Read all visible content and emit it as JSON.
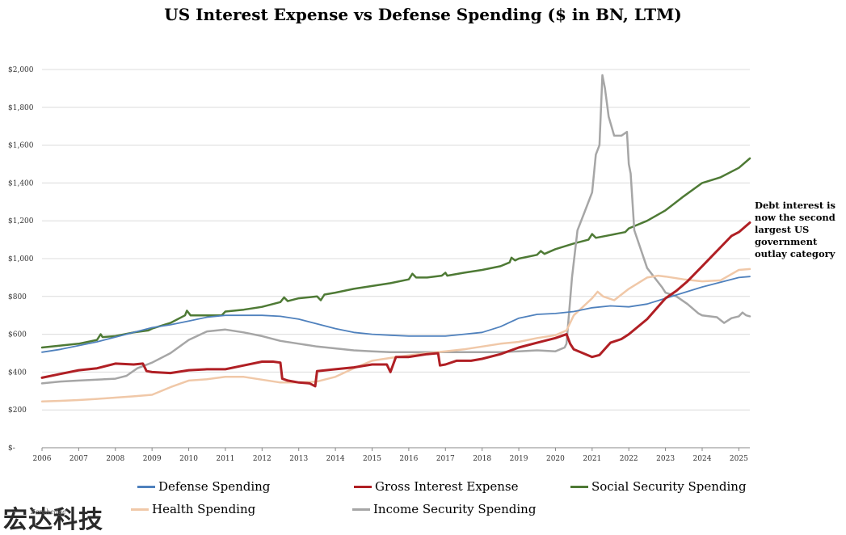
{
  "chart_data": {
    "type": "line",
    "title": "US Interest Expense vs Defense Spending ($ in BN, LTM)",
    "xlabel": "",
    "ylabel": "",
    "xlim": [
      2006,
      2025.3
    ],
    "ylim": [
      0,
      2000
    ],
    "y_ticks": [
      {
        "value": 0,
        "label": "$-"
      },
      {
        "value": 200,
        "label": "$200"
      },
      {
        "value": 400,
        "label": "$400"
      },
      {
        "value": 600,
        "label": "$600"
      },
      {
        "value": 800,
        "label": "$800"
      },
      {
        "value": 1000,
        "label": "$1,000"
      },
      {
        "value": 1200,
        "label": "$1,200"
      },
      {
        "value": 1400,
        "label": "$1,400"
      },
      {
        "value": 1600,
        "label": "$1,600"
      },
      {
        "value": 1800,
        "label": "$1,800"
      },
      {
        "value": 2000,
        "label": "$2,000"
      }
    ],
    "x_ticks": [
      {
        "value": 2006,
        "label": "2006"
      },
      {
        "value": 2007,
        "label": "2007"
      },
      {
        "value": 2008,
        "label": "2008"
      },
      {
        "value": 2009,
        "label": "2009"
      },
      {
        "value": 2010,
        "label": "2010"
      },
      {
        "value": 2011,
        "label": "2011"
      },
      {
        "value": 2012,
        "label": "2012"
      },
      {
        "value": 2013,
        "label": "2013"
      },
      {
        "value": 2014,
        "label": "2014"
      },
      {
        "value": 2015,
        "label": "2015"
      },
      {
        "value": 2016,
        "label": "2016"
      },
      {
        "value": 2017,
        "label": "2017"
      },
      {
        "value": 2018,
        "label": "2018"
      },
      {
        "value": 2019,
        "label": "2019"
      },
      {
        "value": 2020,
        "label": "2020"
      },
      {
        "value": 2021,
        "label": "2021"
      },
      {
        "value": 2022,
        "label": "2022"
      },
      {
        "value": 2023,
        "label": "2023"
      },
      {
        "value": 2024,
        "label": "2024"
      },
      {
        "value": 2025,
        "label": "2025"
      }
    ],
    "grid": "horizontal",
    "legend_position": "bottom",
    "series": [
      {
        "name": "Social Security Spending",
        "color": "#4e7a35",
        "stroke_width": 2.5,
        "points": [
          [
            2006,
            530
          ],
          [
            2006.5,
            540
          ],
          [
            2007,
            550
          ],
          [
            2007.5,
            570
          ],
          [
            2007.6,
            600
          ],
          [
            2007.65,
            585
          ],
          [
            2008,
            590
          ],
          [
            2008.5,
            610
          ],
          [
            2008.9,
            620
          ],
          [
            2009,
            630
          ],
          [
            2009.5,
            660
          ],
          [
            2009.9,
            700
          ],
          [
            2009.95,
            725
          ],
          [
            2010.05,
            700
          ],
          [
            2010.5,
            700
          ],
          [
            2010.9,
            700
          ],
          [
            2011,
            720
          ],
          [
            2011.5,
            730
          ],
          [
            2012,
            745
          ],
          [
            2012.5,
            770
          ],
          [
            2012.6,
            795
          ],
          [
            2012.7,
            775
          ],
          [
            2013,
            790
          ],
          [
            2013.5,
            800
          ],
          [
            2013.6,
            780
          ],
          [
            2013.7,
            810
          ],
          [
            2014,
            820
          ],
          [
            2014.5,
            840
          ],
          [
            2015,
            855
          ],
          [
            2015.5,
            870
          ],
          [
            2016,
            890
          ],
          [
            2016.1,
            920
          ],
          [
            2016.2,
            900
          ],
          [
            2016.5,
            900
          ],
          [
            2016.9,
            910
          ],
          [
            2017,
            925
          ],
          [
            2017.05,
            910
          ],
          [
            2017.5,
            925
          ],
          [
            2018,
            940
          ],
          [
            2018.5,
            960
          ],
          [
            2018.75,
            980
          ],
          [
            2018.8,
            1005
          ],
          [
            2018.9,
            990
          ],
          [
            2019,
            1000
          ],
          [
            2019.5,
            1020
          ],
          [
            2019.6,
            1040
          ],
          [
            2019.7,
            1025
          ],
          [
            2020,
            1050
          ],
          [
            2020.5,
            1080
          ],
          [
            2020.9,
            1100
          ],
          [
            2021,
            1130
          ],
          [
            2021.1,
            1110
          ],
          [
            2021.5,
            1125
          ],
          [
            2021.9,
            1140
          ],
          [
            2022,
            1160
          ],
          [
            2022.5,
            1200
          ],
          [
            2023,
            1255
          ],
          [
            2023.5,
            1330
          ],
          [
            2024,
            1400
          ],
          [
            2024.5,
            1430
          ],
          [
            2025,
            1480
          ],
          [
            2025.3,
            1530
          ]
        ]
      },
      {
        "name": "Income Security Spending",
        "color": "#a6a6a6",
        "stroke_width": 2.5,
        "points": [
          [
            2006,
            340
          ],
          [
            2006.5,
            350
          ],
          [
            2007,
            355
          ],
          [
            2007.5,
            360
          ],
          [
            2008,
            365
          ],
          [
            2008.3,
            380
          ],
          [
            2008.6,
            420
          ],
          [
            2009,
            450
          ],
          [
            2009.5,
            500
          ],
          [
            2010,
            570
          ],
          [
            2010.5,
            615
          ],
          [
            2011,
            625
          ],
          [
            2011.5,
            610
          ],
          [
            2012,
            590
          ],
          [
            2012.5,
            565
          ],
          [
            2013,
            550
          ],
          [
            2013.5,
            535
          ],
          [
            2014,
            525
          ],
          [
            2014.5,
            515
          ],
          [
            2015,
            510
          ],
          [
            2015.5,
            505
          ],
          [
            2016,
            505
          ],
          [
            2016.5,
            505
          ],
          [
            2017,
            505
          ],
          [
            2017.5,
            505
          ],
          [
            2018,
            505
          ],
          [
            2018.5,
            505
          ],
          [
            2019,
            510
          ],
          [
            2019.5,
            515
          ],
          [
            2020,
            510
          ],
          [
            2020.25,
            530
          ],
          [
            2020.3,
            550
          ],
          [
            2020.45,
            900
          ],
          [
            2020.6,
            1150
          ],
          [
            2020.8,
            1250
          ],
          [
            2021,
            1350
          ],
          [
            2021.05,
            1450
          ],
          [
            2021.1,
            1550
          ],
          [
            2021.2,
            1600
          ],
          [
            2021.28,
            1970
          ],
          [
            2021.35,
            1900
          ],
          [
            2021.45,
            1750
          ],
          [
            2021.6,
            1650
          ],
          [
            2021.8,
            1650
          ],
          [
            2021.95,
            1670
          ],
          [
            2022,
            1500
          ],
          [
            2022.05,
            1450
          ],
          [
            2022.15,
            1150
          ],
          [
            2022.5,
            950
          ],
          [
            2022.9,
            850
          ],
          [
            2023,
            820
          ],
          [
            2023.3,
            800
          ],
          [
            2023.6,
            760
          ],
          [
            2023.9,
            710
          ],
          [
            2024,
            700
          ],
          [
            2024.4,
            690
          ],
          [
            2024.6,
            660
          ],
          [
            2024.8,
            685
          ],
          [
            2025,
            695
          ],
          [
            2025.1,
            715
          ],
          [
            2025.2,
            700
          ],
          [
            2025.3,
            695
          ]
        ]
      },
      {
        "name": "Health Spending",
        "color": "#f0c8a8",
        "stroke_width": 2.5,
        "points": [
          [
            2006,
            245
          ],
          [
            2006.5,
            248
          ],
          [
            2007,
            252
          ],
          [
            2007.5,
            258
          ],
          [
            2008,
            265
          ],
          [
            2008.5,
            272
          ],
          [
            2009,
            280
          ],
          [
            2009.5,
            320
          ],
          [
            2010,
            355
          ],
          [
            2010.5,
            362
          ],
          [
            2011,
            375
          ],
          [
            2011.5,
            375
          ],
          [
            2012,
            360
          ],
          [
            2012.5,
            345
          ],
          [
            2013,
            345
          ],
          [
            2013.5,
            350
          ],
          [
            2014,
            375
          ],
          [
            2014.5,
            420
          ],
          [
            2015,
            460
          ],
          [
            2015.5,
            475
          ],
          [
            2016,
            488
          ],
          [
            2016.5,
            500
          ],
          [
            2017,
            510
          ],
          [
            2017.5,
            520
          ],
          [
            2018,
            535
          ],
          [
            2018.5,
            550
          ],
          [
            2019,
            560
          ],
          [
            2019.5,
            580
          ],
          [
            2020,
            595
          ],
          [
            2020.3,
            620
          ],
          [
            2020.5,
            700
          ],
          [
            2021,
            790
          ],
          [
            2021.15,
            825
          ],
          [
            2021.3,
            800
          ],
          [
            2021.6,
            780
          ],
          [
            2022,
            840
          ],
          [
            2022.5,
            900
          ],
          [
            2022.8,
            910
          ],
          [
            2023,
            905
          ],
          [
            2023.5,
            890
          ],
          [
            2024,
            880
          ],
          [
            2024.5,
            885
          ],
          [
            2025,
            940
          ],
          [
            2025.3,
            945
          ]
        ]
      },
      {
        "name": "Defense Spending",
        "color": "#4f81bd",
        "stroke_width": 1.8,
        "points": [
          [
            2006,
            505
          ],
          [
            2006.5,
            520
          ],
          [
            2007,
            540
          ],
          [
            2007.5,
            560
          ],
          [
            2008,
            585
          ],
          [
            2008.5,
            610
          ],
          [
            2009,
            635
          ],
          [
            2009.5,
            650
          ],
          [
            2010,
            670
          ],
          [
            2010.5,
            690
          ],
          [
            2011,
            700
          ],
          [
            2011.5,
            700
          ],
          [
            2012,
            700
          ],
          [
            2012.5,
            695
          ],
          [
            2013,
            680
          ],
          [
            2013.5,
            655
          ],
          [
            2014,
            630
          ],
          [
            2014.5,
            610
          ],
          [
            2015,
            600
          ],
          [
            2015.5,
            595
          ],
          [
            2016,
            590
          ],
          [
            2016.5,
            590
          ],
          [
            2017,
            590
          ],
          [
            2017.5,
            600
          ],
          [
            2018,
            610
          ],
          [
            2018.5,
            640
          ],
          [
            2019,
            685
          ],
          [
            2019.5,
            705
          ],
          [
            2020,
            710
          ],
          [
            2020.5,
            720
          ],
          [
            2021,
            740
          ],
          [
            2021.5,
            750
          ],
          [
            2022,
            745
          ],
          [
            2022.5,
            760
          ],
          [
            2023,
            790
          ],
          [
            2023.5,
            820
          ],
          [
            2024,
            850
          ],
          [
            2024.5,
            875
          ],
          [
            2025,
            900
          ],
          [
            2025.3,
            905
          ]
        ]
      },
      {
        "name": "Gross Interest Expense",
        "color": "#b01f24",
        "stroke_width": 3,
        "points": [
          [
            2006,
            370
          ],
          [
            2006.5,
            390
          ],
          [
            2007,
            410
          ],
          [
            2007.5,
            420
          ],
          [
            2008,
            445
          ],
          [
            2008.5,
            440
          ],
          [
            2008.75,
            445
          ],
          [
            2008.85,
            405
          ],
          [
            2009,
            400
          ],
          [
            2009.5,
            395
          ],
          [
            2010,
            410
          ],
          [
            2010.5,
            415
          ],
          [
            2011,
            415
          ],
          [
            2011.5,
            435
          ],
          [
            2012,
            455
          ],
          [
            2012.3,
            455
          ],
          [
            2012.5,
            450
          ],
          [
            2012.55,
            365
          ],
          [
            2012.7,
            355
          ],
          [
            2013,
            345
          ],
          [
            2013.3,
            340
          ],
          [
            2013.45,
            325
          ],
          [
            2013.5,
            405
          ],
          [
            2014,
            415
          ],
          [
            2014.5,
            425
          ],
          [
            2015,
            440
          ],
          [
            2015.4,
            440
          ],
          [
            2015.5,
            400
          ],
          [
            2015.65,
            480
          ],
          [
            2016,
            480
          ],
          [
            2016.5,
            495
          ],
          [
            2016.8,
            500
          ],
          [
            2016.85,
            435
          ],
          [
            2017,
            440
          ],
          [
            2017.3,
            460
          ],
          [
            2017.7,
            460
          ],
          [
            2018,
            470
          ],
          [
            2018.5,
            495
          ],
          [
            2019,
            530
          ],
          [
            2019.5,
            555
          ],
          [
            2020,
            580
          ],
          [
            2020.3,
            600
          ],
          [
            2020.4,
            550
          ],
          [
            2020.5,
            520
          ],
          [
            2021,
            480
          ],
          [
            2021.2,
            490
          ],
          [
            2021.5,
            555
          ],
          [
            2021.8,
            575
          ],
          [
            2022,
            600
          ],
          [
            2022.5,
            680
          ],
          [
            2023,
            790
          ],
          [
            2023.3,
            830
          ],
          [
            2023.6,
            880
          ],
          [
            2024,
            960
          ],
          [
            2024.5,
            1060
          ],
          [
            2024.8,
            1120
          ],
          [
            2025,
            1140
          ],
          [
            2025.3,
            1190
          ]
        ]
      }
    ],
    "annotations": [
      {
        "text": "Debt interest is now the second largest US government outlay category"
      }
    ]
  },
  "legend": {
    "defense": "Defense Spending",
    "interest": "Gross Interest Expense",
    "social": "Social Security Spending",
    "health": "Health Spending",
    "income": "Income Security Spending"
  },
  "colors": {
    "defense": "#4f81bd",
    "interest": "#b01f24",
    "social": "#4e7a35",
    "health": "#f0c8a8",
    "income": "#a6a6a6"
  },
  "watermark": "宏达科技",
  "signature": "Zerohedge"
}
